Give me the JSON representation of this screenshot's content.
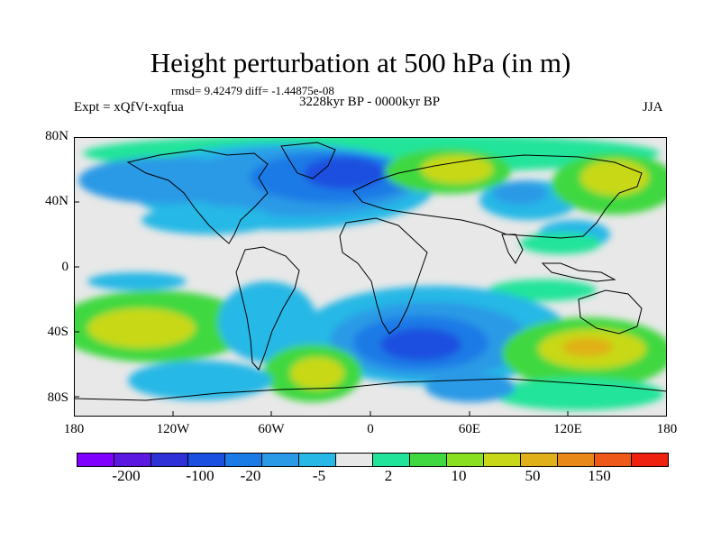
{
  "title": "Height perturbation at 500 hPa (in m)",
  "stats": "rmsd= 9.42479 diff= -1.44875e-08",
  "left_label": "Expt = xQfVt-xqfua",
  "period": "3228kyr BP - 0000kyr BP",
  "season": "JJA",
  "lat_labels": [
    "80N",
    "40N",
    "0",
    "40S",
    "80S"
  ],
  "lon_labels": [
    "180",
    "120W",
    "60W",
    "0",
    "60E",
    "120E",
    "180"
  ],
  "colorbar": {
    "colors": [
      "#7f00ff",
      "#5a18e0",
      "#3030d8",
      "#1a4fe0",
      "#1a7ae6",
      "#2a9ae6",
      "#28b8e6",
      "#e8e8e8",
      "#20e49a",
      "#40d840",
      "#88e020",
      "#c8d818",
      "#e0b018",
      "#e88818",
      "#ee5818",
      "#ee2010"
    ],
    "labels": [
      "-200",
      "-100",
      "-20",
      "-5",
      "2",
      "10",
      "50",
      "150"
    ]
  },
  "palette": {
    "neutral": "#e8e8e8",
    "light_blue": "#28b8e6",
    "mid_blue": "#2a9ae6",
    "blue": "#1a7ae6",
    "dark_blue": "#1a4fe0",
    "teal": "#20e49a",
    "green": "#40d840",
    "yellow_green": "#88e020",
    "olive": "#c8d818",
    "orange": "#e0b018"
  }
}
